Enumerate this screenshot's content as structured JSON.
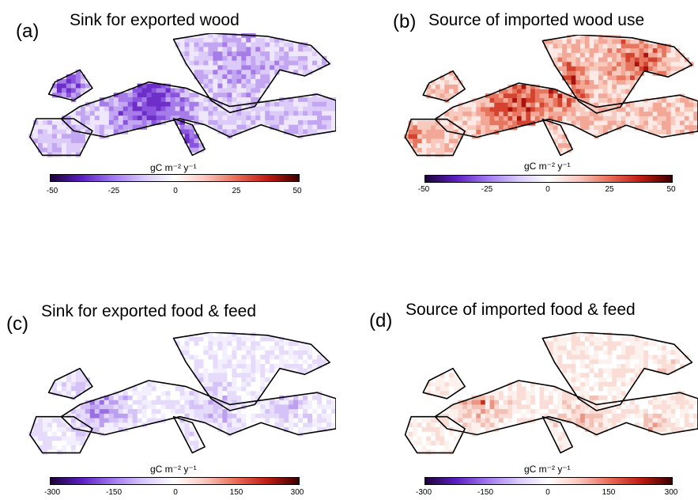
{
  "colorbar_gradient": [
    "#1c0338",
    "#5b1ec2",
    "#a177f0",
    "#d8c8fb",
    "#ffffff",
    "#f8c5bc",
    "#e86a55",
    "#bf1a12",
    "#3c0000"
  ],
  "panels": [
    {
      "id": "a",
      "letter": "(a)",
      "title": "Sink for exported wood",
      "unit": "gC m⁻² y⁻¹",
      "ticks": [
        "-50",
        "-25",
        "0",
        "25",
        "50"
      ],
      "range": [
        -50,
        50
      ],
      "tone": "purple"
    },
    {
      "id": "b",
      "letter": "(b)",
      "title": "Source of imported wood use",
      "unit": "gC m⁻² y⁻¹",
      "ticks": [
        "-50",
        "-25",
        "0",
        "25",
        "50"
      ],
      "range": [
        -50,
        50
      ],
      "tone": "red"
    },
    {
      "id": "c",
      "letter": "(c)",
      "title": "Sink for exported food & feed",
      "unit": "gC m⁻² y⁻¹",
      "ticks": [
        "-300",
        "-150",
        "0",
        "150",
        "300"
      ],
      "range": [
        -300,
        300
      ],
      "tone": "purple-light"
    },
    {
      "id": "d",
      "letter": "(d)",
      "title": "Source of imported food & feed",
      "unit": "gC m⁻² y⁻¹",
      "ticks": [
        "-300",
        "-150",
        "0",
        "150",
        "300"
      ],
      "range": [
        -300,
        300
      ],
      "tone": "red-light"
    }
  ]
}
